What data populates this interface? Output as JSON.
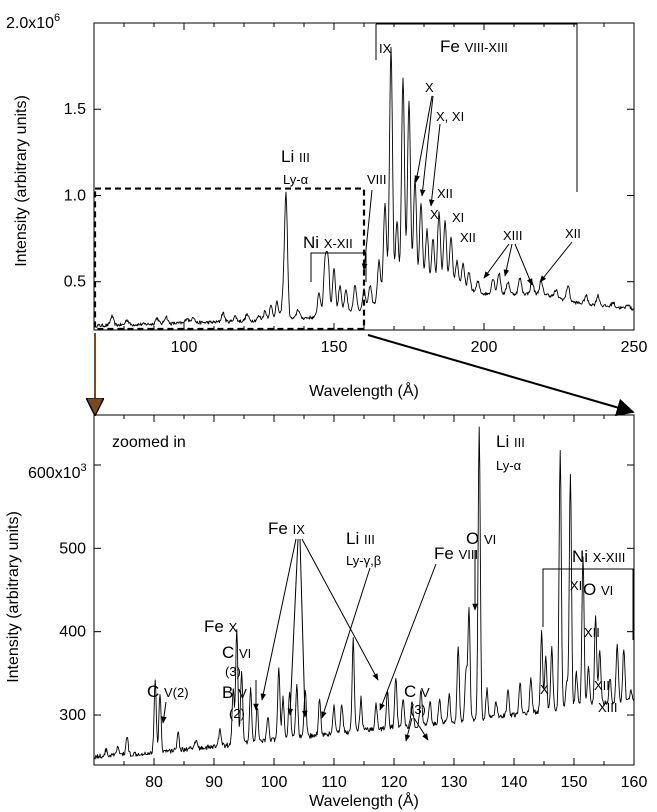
{
  "chart_data": [
    {
      "type": "line",
      "panel": "top",
      "xlabel": "Wavelength (Å)",
      "ylabel": "Intensity (arbitrary units)",
      "xlim": [
        70,
        250
      ],
      "ylim": [
        0.22,
        2.0
      ],
      "y_multiplier_label": "x10",
      "y_exponent": "6",
      "xticks": [
        100,
        150,
        200,
        250
      ],
      "yticks": [
        0.5,
        1.0,
        1.5,
        2.0
      ],
      "ytick_labels": [
        "0.5",
        "1.0",
        "1.5",
        "2.0"
      ],
      "baseline": [
        [
          70,
          0.245
        ],
        [
          90,
          0.255
        ],
        [
          110,
          0.265
        ],
        [
          130,
          0.28
        ],
        [
          150,
          0.3
        ],
        [
          160,
          0.34
        ],
        [
          165,
          0.39
        ],
        [
          170,
          0.43
        ],
        [
          180,
          0.46
        ],
        [
          190,
          0.47
        ],
        [
          200,
          0.43
        ],
        [
          210,
          0.43
        ],
        [
          220,
          0.43
        ],
        [
          230,
          0.38
        ],
        [
          240,
          0.36
        ],
        [
          250,
          0.34
        ]
      ],
      "peaks": [
        [
          76,
          0.3
        ],
        [
          81,
          0.28
        ],
        [
          91,
          0.29
        ],
        [
          94,
          0.3
        ],
        [
          101,
          0.29
        ],
        [
          103,
          0.3
        ],
        [
          113,
          0.32
        ],
        [
          117,
          0.3
        ],
        [
          121,
          0.31
        ],
        [
          125,
          0.3
        ],
        [
          127,
          0.33
        ],
        [
          129,
          0.36
        ],
        [
          131,
          0.38
        ],
        [
          133,
          0.39
        ],
        [
          134,
          1.0
        ],
        [
          138,
          0.34
        ],
        [
          145,
          0.44
        ],
        [
          147,
          0.6
        ],
        [
          148,
          0.62
        ],
        [
          150,
          0.58
        ],
        [
          152,
          0.48
        ],
        [
          154,
          0.45
        ],
        [
          157,
          0.48
        ],
        [
          160,
          0.45
        ],
        [
          162,
          0.48
        ],
        [
          165,
          0.62
        ],
        [
          167,
          0.95
        ],
        [
          169,
          1.85
        ],
        [
          171,
          0.85
        ],
        [
          173,
          1.68
        ],
        [
          175,
          1.55
        ],
        [
          177,
          1.1
        ],
        [
          179,
          0.95
        ],
        [
          181,
          0.8
        ],
        [
          183,
          0.75
        ],
        [
          185,
          0.9
        ],
        [
          187,
          0.85
        ],
        [
          189,
          0.75
        ],
        [
          191,
          0.62
        ],
        [
          193,
          0.6
        ],
        [
          195,
          0.55
        ],
        [
          198,
          0.5
        ],
        [
          203,
          0.52
        ],
        [
          205,
          0.55
        ],
        [
          208,
          0.5
        ],
        [
          212,
          0.52
        ],
        [
          216,
          0.5
        ],
        [
          219,
          0.5
        ],
        [
          224,
          0.45
        ],
        [
          228,
          0.48
        ],
        [
          234,
          0.42
        ],
        [
          238,
          0.42
        ],
        [
          243,
          0.38
        ],
        [
          248,
          0.37
        ]
      ],
      "zoom_box": {
        "x": [
          70,
          160
        ],
        "y": [
          0.22,
          1.04
        ]
      },
      "annotations": {
        "fe_group": {
          "main": "Fe",
          "sub": "VIII-XIII"
        },
        "li": {
          "main": "Li",
          "sub": "III",
          "line2": "Ly-α"
        },
        "ni": {
          "main": "Ni",
          "sub": "X-XII"
        },
        "ion_labels": [
          "IX",
          "X",
          "X, XI",
          "VIII",
          "XII",
          "X",
          "XI",
          "XII",
          "XIII",
          "XII"
        ]
      }
    },
    {
      "type": "line",
      "panel": "bottom",
      "xlabel": "Wavelength (Å)",
      "ylabel": "Intensity (arbitrary units)",
      "xlim": [
        70,
        160
      ],
      "ylim": [
        240,
        660
      ],
      "y_multiplier_label": "x10",
      "y_exponent": "3",
      "xticks": [
        80,
        90,
        100,
        110,
        120,
        130,
        140,
        150,
        160
      ],
      "yticks": [
        300,
        400,
        500,
        600
      ],
      "ytick_labels": [
        "300",
        "400",
        "500",
        "600"
      ],
      "inset_label": "zoomed in",
      "baseline": [
        [
          70,
          250
        ],
        [
          80,
          255
        ],
        [
          90,
          262
        ],
        [
          100,
          270
        ],
        [
          110,
          278
        ],
        [
          120,
          285
        ],
        [
          130,
          292
        ],
        [
          140,
          300
        ],
        [
          150,
          310
        ],
        [
          160,
          318
        ]
      ],
      "peaks": [
        [
          72,
          258
        ],
        [
          74,
          262
        ],
        [
          75.5,
          275
        ],
        [
          80.2,
          340
        ],
        [
          81,
          325
        ],
        [
          84,
          280
        ],
        [
          87,
          270
        ],
        [
          91,
          285
        ],
        [
          93.2,
          330
        ],
        [
          93.8,
          405
        ],
        [
          94.6,
          355
        ],
        [
          96.1,
          330
        ],
        [
          97.2,
          310
        ],
        [
          99,
          300
        ],
        [
          100.8,
          355
        ],
        [
          101.5,
          320
        ],
        [
          102.6,
          330
        ],
        [
          103.8,
          335
        ],
        [
          105.2,
          330
        ],
        [
          107.6,
          320
        ],
        [
          110,
          310
        ],
        [
          111.3,
          312
        ],
        [
          113.2,
          390
        ],
        [
          114.5,
          320
        ],
        [
          117,
          315
        ],
        [
          118.9,
          330
        ],
        [
          120.3,
          345
        ],
        [
          121.5,
          320
        ],
        [
          123,
          315
        ],
        [
          124.5,
          330
        ],
        [
          126,
          315
        ],
        [
          127.6,
          320
        ],
        [
          129.2,
          325
        ],
        [
          130.7,
          380
        ],
        [
          132,
          355
        ],
        [
          132.5,
          425
        ],
        [
          134.2,
          645
        ],
        [
          135.5,
          330
        ],
        [
          137,
          315
        ],
        [
          139,
          330
        ],
        [
          141,
          340
        ],
        [
          142.8,
          345
        ],
        [
          144.6,
          400
        ],
        [
          145.3,
          370
        ],
        [
          146.3,
          380
        ],
        [
          147.7,
          620
        ],
        [
          148.8,
          340
        ],
        [
          149.4,
          590
        ],
        [
          150.4,
          350
        ],
        [
          151.5,
          490
        ],
        [
          152.4,
          360
        ],
        [
          153.6,
          420
        ],
        [
          154.3,
          380
        ],
        [
          156,
          345
        ],
        [
          157.2,
          385
        ],
        [
          158.3,
          380
        ],
        [
          159.5,
          330
        ]
      ],
      "annotations": {
        "c_v2": {
          "main": "C",
          "sub": "V(2)"
        },
        "fe_x": {
          "main": "Fe",
          "sub": "X"
        },
        "c_vi": {
          "main": "C",
          "sub": "VI",
          "line2": "(3)"
        },
        "b_v": {
          "main": "B",
          "sub": "V",
          "line2": "(2)"
        },
        "fe_ix": {
          "main": "Fe",
          "sub": "IX"
        },
        "li_gb": {
          "main": "Li",
          "sub": "III",
          "line2": "Ly-γ,β"
        },
        "fe_viii": {
          "main": "Fe",
          "sub": "VIII"
        },
        "c_v": {
          "main": "C",
          "sub": "V",
          "line2": "(3)"
        },
        "o_vi_a": {
          "main": "O",
          "sub": "VI"
        },
        "li_a": {
          "main": "Li",
          "sub": "III",
          "line2": "Ly-α"
        },
        "ni_group": {
          "main": "Ni",
          "sub": "X-XIII"
        },
        "o_vi_b": {
          "main": "O",
          "sub": "VI"
        },
        "ion_labels": [
          "XI",
          "XII",
          "X",
          "XII",
          "XIII"
        ]
      }
    }
  ]
}
